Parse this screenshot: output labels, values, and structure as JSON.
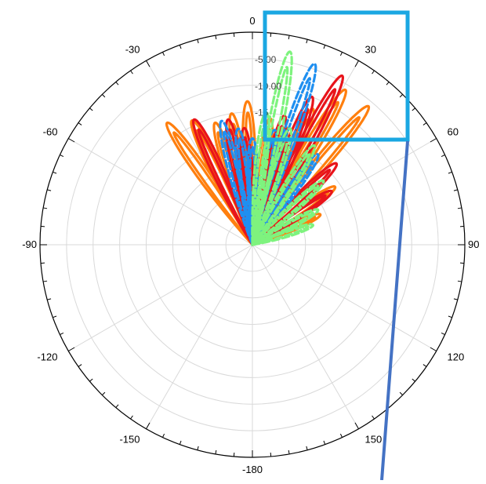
{
  "chart_data": {
    "type": "polar-line",
    "title": "",
    "angular_axis": {
      "direction": "clockwise",
      "zero_at": "top",
      "tick_labels": [
        "0",
        "30",
        "60",
        "90",
        "120",
        "150",
        "-180",
        "-150",
        "-120",
        "-90",
        "-60",
        "-30"
      ]
    },
    "radial_axis": {
      "range_db": [
        -40,
        0
      ],
      "ring_step_db": 5,
      "tick_labels": [
        "-5.00",
        "-10.00",
        "-15"
      ],
      "grid": true
    },
    "legend": "none",
    "series": [
      {
        "color": "#ff7f0e",
        "style": "solid",
        "beams": [
          {
            "peak_deg": -35,
            "peak_db": -12
          },
          {
            "peak_deg": -26,
            "peak_db": -14
          },
          {
            "peak_deg": -17,
            "peak_db": -16
          },
          {
            "peak_deg": -9,
            "peak_db": -15
          },
          {
            "peak_deg": -2,
            "peak_db": -13
          },
          {
            "peak_deg": 8,
            "peak_db": -16
          },
          {
            "peak_deg": 16,
            "peak_db": -17
          },
          {
            "peak_deg": 24,
            "peak_db": -12
          },
          {
            "peak_deg": 31,
            "peak_db": -6
          },
          {
            "peak_deg": 40,
            "peak_db": -6
          },
          {
            "peak_deg": 55,
            "peak_db": -21
          },
          {
            "peak_deg": 66,
            "peak_db": -26
          }
        ]
      },
      {
        "color": "#e8141b",
        "style": "solid",
        "beams": [
          {
            "peak_deg": -25,
            "peak_db": -14
          },
          {
            "peak_deg": -11,
            "peak_db": -16
          },
          {
            "peak_deg": -4,
            "peak_db": -18
          },
          {
            "peak_deg": 14,
            "peak_db": -15
          },
          {
            "peak_deg": 22,
            "peak_db": -10
          },
          {
            "peak_deg": 28,
            "peak_db": -4
          },
          {
            "peak_deg": 46,
            "peak_db": -18
          },
          {
            "peak_deg": 56,
            "peak_db": -22
          }
        ]
      },
      {
        "color": "#1f8ff0",
        "style": "dashed",
        "beams": [
          {
            "peak_deg": -14,
            "peak_db": -16
          },
          {
            "peak_deg": -7,
            "peak_db": -18
          },
          {
            "peak_deg": 0,
            "peak_db": -20
          },
          {
            "peak_deg": 11,
            "peak_db": -18
          },
          {
            "peak_deg": 19,
            "peak_db": -4
          },
          {
            "peak_deg": 36,
            "peak_db": -19
          }
        ]
      },
      {
        "color": "#7ef37e",
        "style": "dashed",
        "beams": [
          {
            "peak_deg": 6,
            "peak_db": -15
          },
          {
            "peak_deg": 11,
            "peak_db": -3
          },
          {
            "peak_deg": 18,
            "peak_db": -17
          },
          {
            "peak_deg": 32,
            "peak_db": -18
          },
          {
            "peak_deg": 48,
            "peak_db": -22
          },
          {
            "peak_deg": 62,
            "peak_db": -26
          },
          {
            "peak_deg": 72,
            "peak_db": -28
          }
        ]
      }
    ],
    "annotations": [
      {
        "kind": "highlight-box",
        "color": "#1aa7e2"
      },
      {
        "kind": "leader-line",
        "color": "#4472c4"
      }
    ]
  }
}
